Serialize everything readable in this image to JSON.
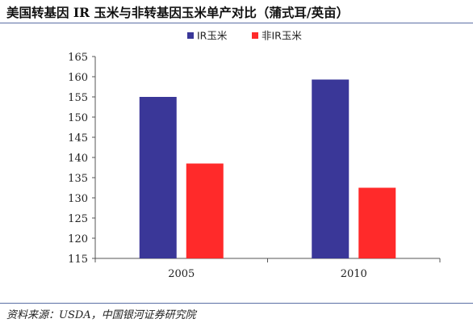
{
  "title": "美国转基因 IR 玉米与非转基因玉米单产对比（蒲式耳/英亩）",
  "source": "资料来源：USDA，中国银河证券研究院",
  "chart_data": {
    "type": "bar",
    "categories": [
      "2005",
      "2010"
    ],
    "series": [
      {
        "name": "IR玉米",
        "color": "#3a3798",
        "values": [
          155,
          159.3
        ]
      },
      {
        "name": "非IR玉米",
        "color": "#ff2a2a",
        "values": [
          138.5,
          132.5
        ]
      }
    ],
    "ylim": [
      115,
      165
    ],
    "yticks": [
      115,
      120,
      125,
      130,
      135,
      140,
      145,
      150,
      155,
      160,
      165
    ],
    "ytick_labels": [
      "115",
      "120",
      "125",
      "130",
      "135",
      "140",
      "145",
      "150",
      "155",
      "160",
      "165"
    ],
    "xlabel": "",
    "ylabel": "",
    "legend_position": "top-center",
    "grid": false
  }
}
